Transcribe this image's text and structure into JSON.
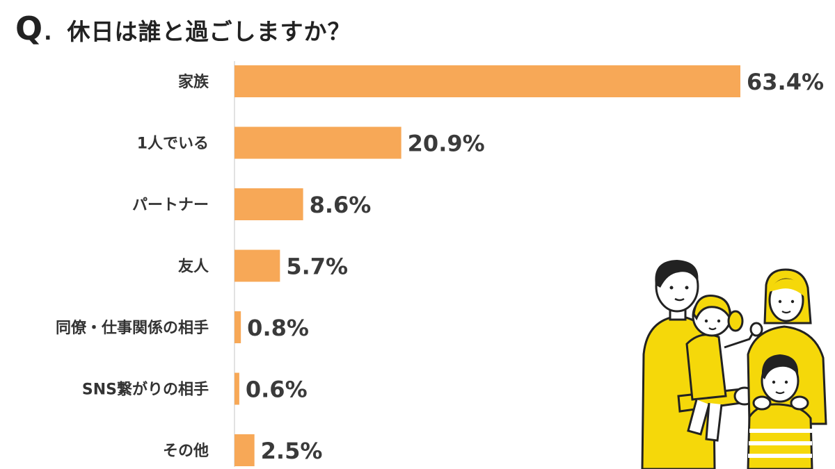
{
  "title": {
    "prefix": "Q",
    "dot": ".",
    "question": "休日は誰と過ごしますか？"
  },
  "chart_data": {
    "type": "bar",
    "orientation": "horizontal",
    "categories": [
      "家族",
      "1人でいる",
      "パートナー",
      "友人",
      "同僚・仕事関係の相手",
      "SNS繋がりの相手",
      "その他"
    ],
    "values": [
      63.4,
      20.9,
      8.6,
      5.7,
      0.8,
      0.6,
      2.5
    ],
    "value_labels": [
      "63.4%",
      "20.9%",
      "8.6%",
      "5.7%",
      "0.8%",
      "0.6%",
      "2.5%"
    ],
    "unit": "%",
    "xlim": [
      0,
      63.4
    ],
    "bar_color": "#F7A857",
    "grid": false
  },
  "illustration": {
    "icon": "family-illustration"
  }
}
